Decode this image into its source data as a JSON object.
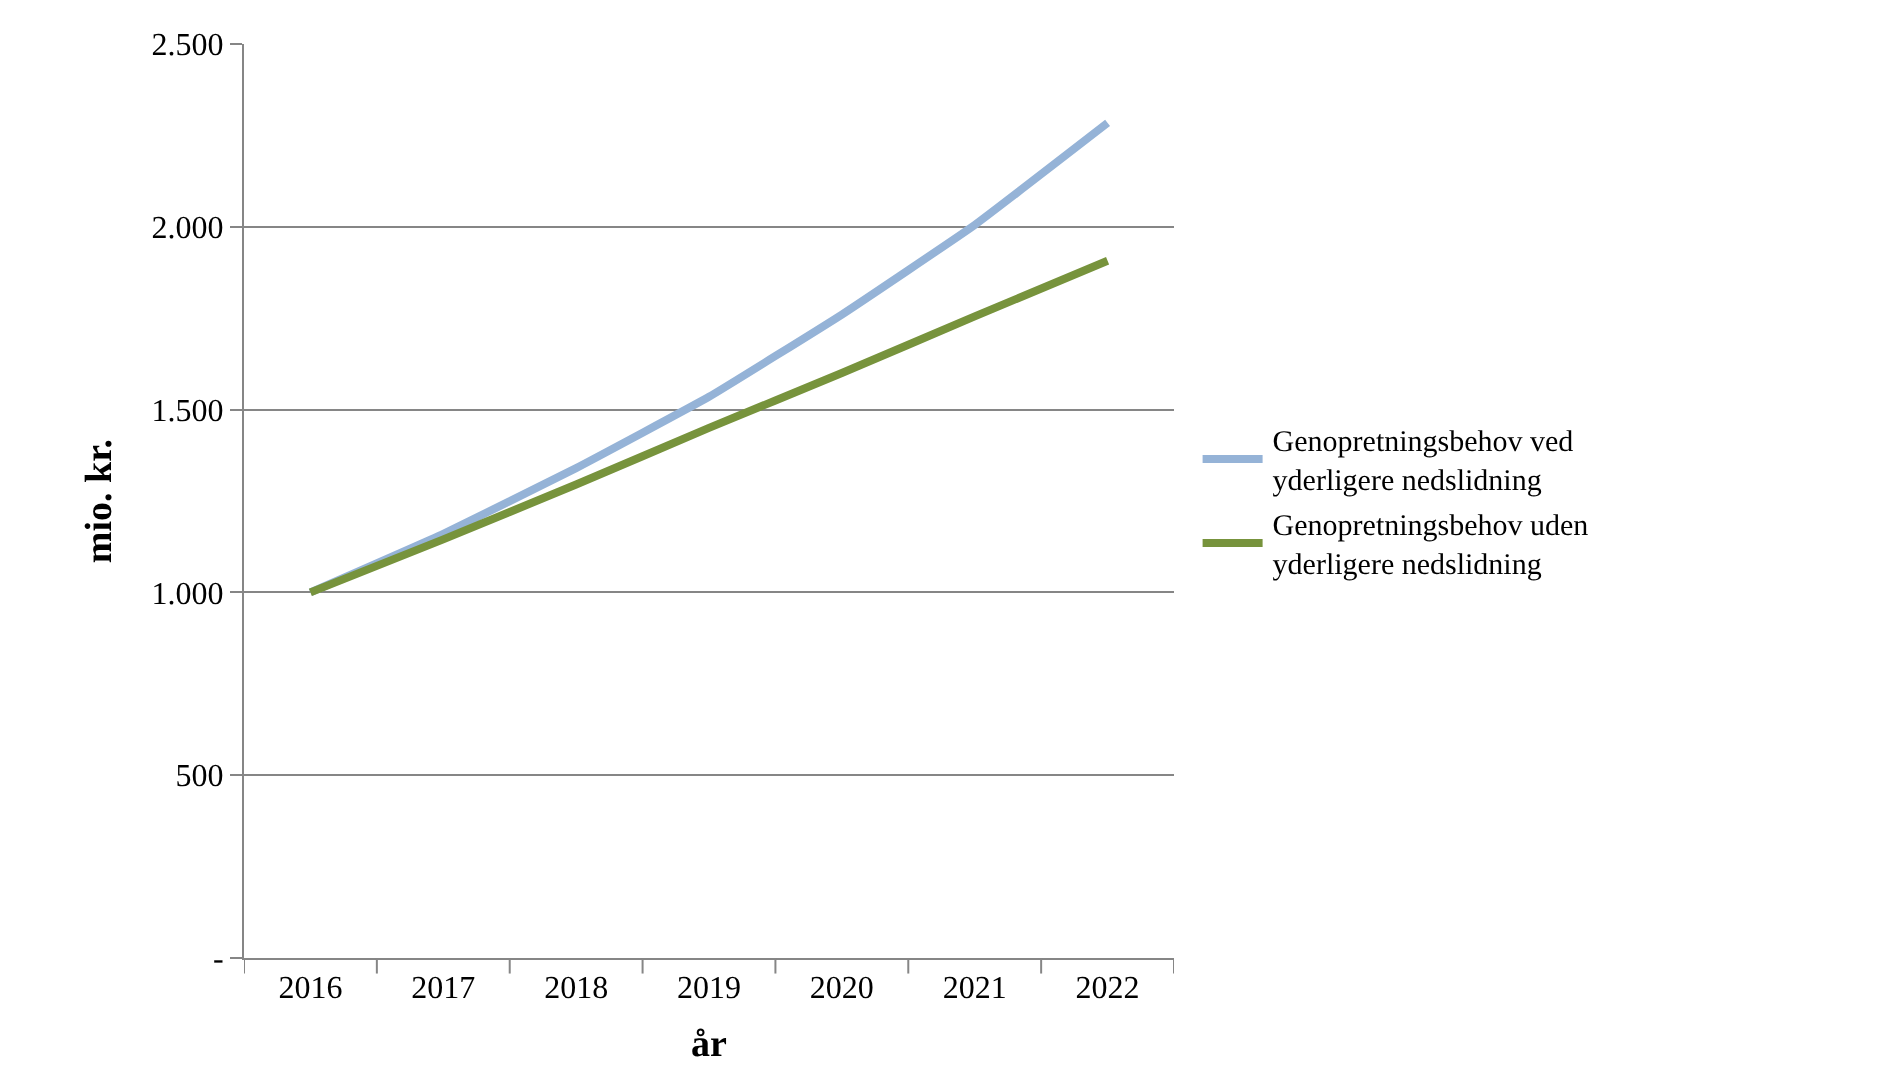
{
  "chart_data": {
    "type": "line",
    "xlabel": "år",
    "ylabel": "mio. kr.",
    "categories": [
      "2016",
      "2017",
      "2018",
      "2019",
      "2020",
      "2021",
      "2022"
    ],
    "series": [
      {
        "name": "Genopretningsbehov ved yderligere nedslidning",
        "color": "#95b3d7",
        "values": [
          1000,
          1160,
          1340,
          1535,
          1760,
          2005,
          2284
        ]
      },
      {
        "name": "Genopretningsbehov uden yderligere nedslidning",
        "color": "#77933c",
        "values": [
          1000,
          1145,
          1295,
          1450,
          1600,
          1755,
          1907
        ]
      }
    ],
    "ylim": [
      0,
      2500
    ],
    "yticks": [
      {
        "value": 0,
        "label": "-"
      },
      {
        "value": 500,
        "label": "500"
      },
      {
        "value": 1000,
        "label": "1.000"
      },
      {
        "value": 1500,
        "label": "1.500"
      },
      {
        "value": 2000,
        "label": "2.000"
      },
      {
        "value": 2500,
        "label": "2.500"
      }
    ],
    "grid": "y",
    "legend": "right",
    "marker": "none",
    "line_style": "solid"
  }
}
